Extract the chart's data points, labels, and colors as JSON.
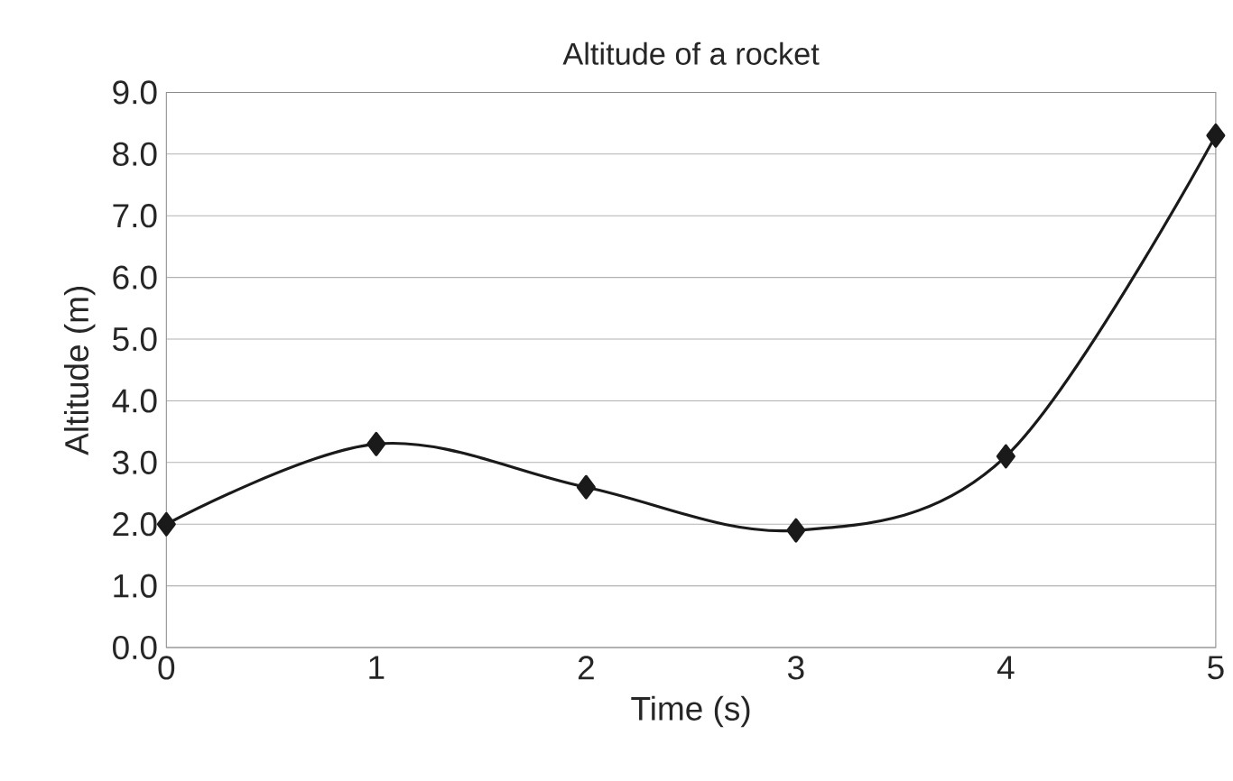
{
  "chart_data": {
    "type": "line",
    "title": "Altitude of a rocket",
    "xlabel": "Time (s)",
    "ylabel": "Altitude (m)",
    "x": [
      0,
      1,
      2,
      3,
      4,
      5
    ],
    "series": [
      {
        "color": "#1a1a1a",
        "values": [
          2.0,
          3.3,
          2.6,
          1.9,
          3.1,
          8.3
        ]
      }
    ],
    "xlim": [
      0,
      5
    ],
    "xticks": [
      0,
      1,
      2,
      3,
      4,
      5
    ],
    "ylim": [
      0,
      9
    ],
    "yticks": [
      {
        "value": 0,
        "label": "0.0"
      },
      {
        "value": 1,
        "label": "1.0"
      },
      {
        "value": 2,
        "label": "2.0"
      },
      {
        "value": 3,
        "label": "3.0"
      },
      {
        "value": 4,
        "label": "4.0"
      },
      {
        "value": 5,
        "label": "5.0"
      },
      {
        "value": 6,
        "label": "6.0"
      },
      {
        "value": 7,
        "label": "7.0"
      },
      {
        "value": 8,
        "label": "8.0"
      },
      {
        "value": 9,
        "label": "9.0"
      }
    ],
    "grid": "y",
    "marker": "diamond",
    "line_style": "solid"
  }
}
